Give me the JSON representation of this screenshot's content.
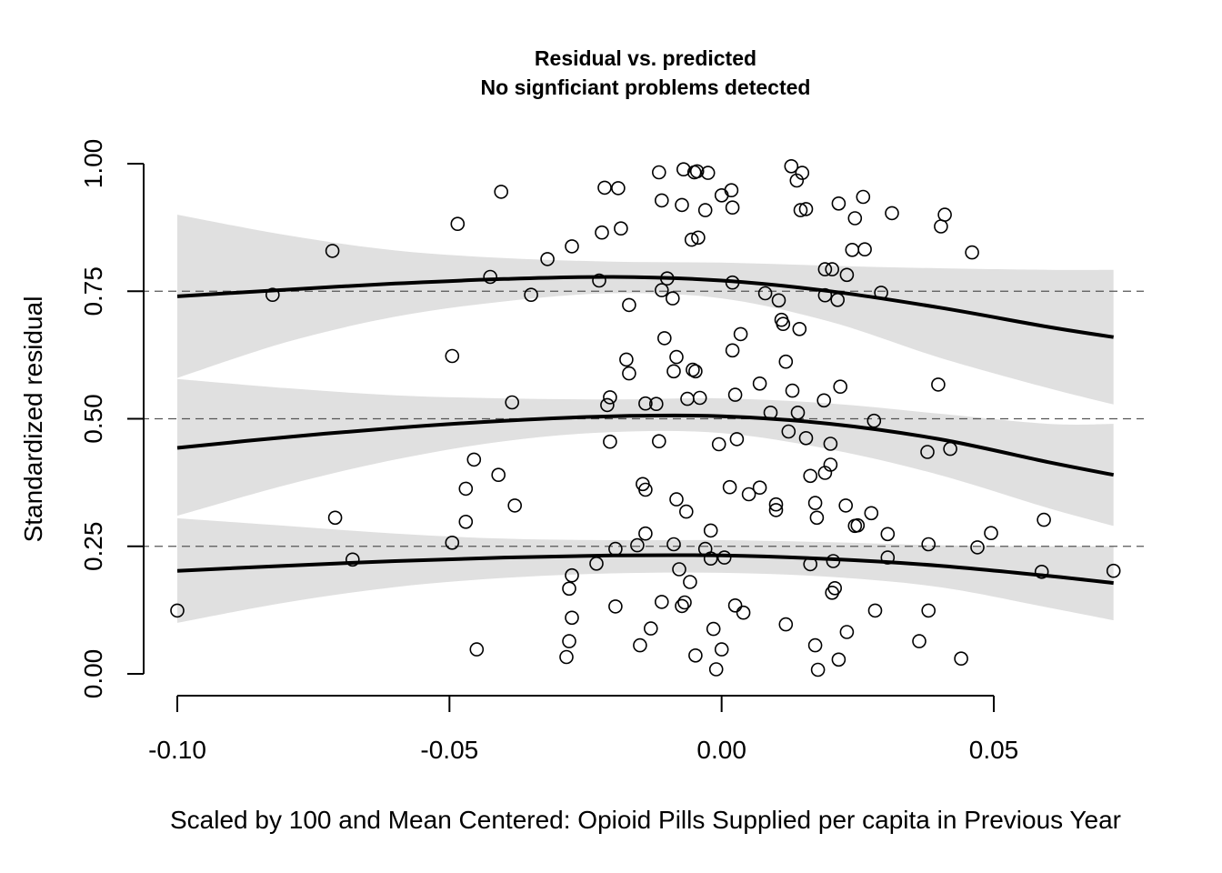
{
  "chart_data": {
    "type": "scatter",
    "title": "Residual vs. predicted",
    "subtitle": "No signficiant problems detected",
    "xlabel": "Scaled by 100 and Mean Centered: Opioid Pills Supplied per capita in Previous Year",
    "ylabel": "Standardized residual",
    "xlim": [
      -0.1,
      0.072
    ],
    "ylim": [
      0,
      1
    ],
    "x_ticks": [
      -0.1,
      -0.05,
      0.0,
      0.05
    ],
    "x_tick_labels": [
      "-0.10",
      "-0.05",
      "0.00",
      "0.05"
    ],
    "y_ticks": [
      0,
      0.25,
      0.5,
      0.75,
      1
    ],
    "y_tick_labels": [
      "0.00",
      "0.25",
      "0.50",
      "0.75",
      "1.00"
    ],
    "grid": false,
    "reference_lines": [
      0.25,
      0.5,
      0.75
    ],
    "quantile_curves": [
      {
        "quantile": 0.25,
        "x": [
          -0.1,
          -0.08,
          -0.06,
          -0.04,
          -0.02,
          0.0,
          0.02,
          0.04,
          0.06,
          0.072
        ],
        "fit": [
          0.202,
          0.212,
          0.221,
          0.228,
          0.232,
          0.232,
          0.225,
          0.212,
          0.192,
          0.178
        ],
        "lower": [
          0.1,
          0.14,
          0.17,
          0.188,
          0.197,
          0.198,
          0.19,
          0.17,
          0.13,
          0.105
        ],
        "upper": [
          0.305,
          0.29,
          0.275,
          0.265,
          0.262,
          0.262,
          0.258,
          0.252,
          0.25,
          0.25
        ]
      },
      {
        "quantile": 0.5,
        "x": [
          -0.1,
          -0.08,
          -0.06,
          -0.04,
          -0.02,
          0.0,
          0.02,
          0.04,
          0.06,
          0.072
        ],
        "fit": [
          0.443,
          0.464,
          0.482,
          0.496,
          0.505,
          0.505,
          0.49,
          0.46,
          0.415,
          0.39
        ],
        "lower": [
          0.31,
          0.37,
          0.42,
          0.456,
          0.474,
          0.472,
          0.44,
          0.39,
          0.325,
          0.29
        ],
        "upper": [
          0.578,
          0.56,
          0.546,
          0.54,
          0.538,
          0.54,
          0.53,
          0.51,
          0.49,
          0.49
        ]
      },
      {
        "quantile": 0.75,
        "x": [
          -0.1,
          -0.08,
          -0.06,
          -0.04,
          -0.02,
          0.0,
          0.02,
          0.04,
          0.06,
          0.072
        ],
        "fit": [
          0.74,
          0.753,
          0.765,
          0.774,
          0.778,
          0.771,
          0.75,
          0.718,
          0.68,
          0.66
        ],
        "lower": [
          0.58,
          0.65,
          0.7,
          0.73,
          0.746,
          0.736,
          0.69,
          0.62,
          0.56,
          0.528
        ],
        "upper": [
          0.9,
          0.86,
          0.83,
          0.815,
          0.808,
          0.806,
          0.8,
          0.795,
          0.792,
          0.792
        ]
      }
    ],
    "points": [
      [
        -0.1,
        0.124
      ],
      [
        -0.0825,
        0.743
      ],
      [
        -0.0715,
        0.829
      ],
      [
        -0.071,
        0.306
      ],
      [
        -0.0678,
        0.224
      ],
      [
        -0.0495,
        0.623
      ],
      [
        -0.0495,
        0.257
      ],
      [
        -0.0485,
        0.882
      ],
      [
        -0.047,
        0.363
      ],
      [
        -0.047,
        0.298
      ],
      [
        -0.0455,
        0.42
      ],
      [
        -0.045,
        0.048
      ],
      [
        -0.0425,
        0.778
      ],
      [
        -0.041,
        0.39
      ],
      [
        -0.0405,
        0.945
      ],
      [
        -0.0385,
        0.532
      ],
      [
        -0.038,
        0.33
      ],
      [
        -0.035,
        0.743
      ],
      [
        -0.032,
        0.813
      ],
      [
        -0.0285,
        0.033
      ],
      [
        -0.028,
        0.064
      ],
      [
        -0.028,
        0.167
      ],
      [
        -0.0275,
        0.193
      ],
      [
        -0.0275,
        0.11
      ],
      [
        -0.0275,
        0.838
      ],
      [
        -0.023,
        0.216
      ],
      [
        -0.0225,
        0.771
      ],
      [
        -0.022,
        0.865
      ],
      [
        -0.0215,
        0.953
      ],
      [
        -0.021,
        0.527
      ],
      [
        -0.0205,
        0.542
      ],
      [
        -0.0205,
        0.455
      ],
      [
        -0.0195,
        0.245
      ],
      [
        -0.0195,
        0.132
      ],
      [
        -0.019,
        0.952
      ],
      [
        -0.0185,
        0.873
      ],
      [
        -0.0175,
        0.616
      ],
      [
        -0.017,
        0.723
      ],
      [
        -0.017,
        0.589
      ],
      [
        -0.0155,
        0.252
      ],
      [
        -0.015,
        0.056
      ],
      [
        -0.0145,
        0.372
      ],
      [
        -0.014,
        0.361
      ],
      [
        -0.014,
        0.275
      ],
      [
        -0.014,
        0.53
      ],
      [
        -0.013,
        0.089
      ],
      [
        -0.012,
        0.529
      ],
      [
        -0.0115,
        0.983
      ],
      [
        -0.0115,
        0.456
      ],
      [
        -0.011,
        0.928
      ],
      [
        -0.011,
        0.752
      ],
      [
        -0.011,
        0.141
      ],
      [
        -0.0105,
        0.658
      ],
      [
        -0.01,
        0.775
      ],
      [
        -0.009,
        0.736
      ],
      [
        -0.0088,
        0.593
      ],
      [
        -0.0088,
        0.254
      ],
      [
        -0.0083,
        0.621
      ],
      [
        -0.0083,
        0.342
      ],
      [
        -0.0078,
        0.205
      ],
      [
        -0.0073,
        0.919
      ],
      [
        -0.0073,
        0.133
      ],
      [
        -0.007,
        0.989
      ],
      [
        -0.0068,
        0.14
      ],
      [
        -0.0065,
        0.318
      ],
      [
        -0.0063,
        0.539
      ],
      [
        -0.0058,
        0.18
      ],
      [
        -0.0055,
        0.851
      ],
      [
        -0.0053,
        0.596
      ],
      [
        -0.005,
        0.983
      ],
      [
        -0.0048,
        0.036
      ],
      [
        -0.0048,
        0.593
      ],
      [
        -0.0045,
        0.985
      ],
      [
        -0.0043,
        0.855
      ],
      [
        -0.004,
        0.541
      ],
      [
        -0.003,
        0.909
      ],
      [
        -0.003,
        0.245
      ],
      [
        -0.0025,
        0.982
      ],
      [
        -0.002,
        0.281
      ],
      [
        -0.002,
        0.226
      ],
      [
        -0.0015,
        0.088
      ],
      [
        -0.001,
        0.009
      ],
      [
        0.0,
        0.938
      ],
      [
        -0.0005,
        0.45
      ],
      [
        0.0,
        0.048
      ],
      [
        0.0005,
        0.228
      ],
      [
        0.0015,
        0.366
      ],
      [
        0.0018,
        0.948
      ],
      [
        0.002,
        0.767
      ],
      [
        0.002,
        0.634
      ],
      [
        0.002,
        0.914
      ],
      [
        0.0025,
        0.547
      ],
      [
        0.0025,
        0.134
      ],
      [
        0.0028,
        0.46
      ],
      [
        0.0035,
        0.666
      ],
      [
        0.004,
        0.12
      ],
      [
        0.005,
        0.352
      ],
      [
        0.007,
        0.365
      ],
      [
        0.007,
        0.569
      ],
      [
        0.008,
        0.746
      ],
      [
        0.009,
        0.512
      ],
      [
        0.01,
        0.332
      ],
      [
        0.01,
        0.321
      ],
      [
        0.0105,
        0.732
      ],
      [
        0.011,
        0.694
      ],
      [
        0.0113,
        0.686
      ],
      [
        0.0118,
        0.612
      ],
      [
        0.0118,
        0.097
      ],
      [
        0.0123,
        0.475
      ],
      [
        0.0128,
        0.995
      ],
      [
        0.013,
        0.555
      ],
      [
        0.0138,
        0.967
      ],
      [
        0.014,
        0.512
      ],
      [
        0.0143,
        0.676
      ],
      [
        0.0145,
        0.909
      ],
      [
        0.0148,
        0.982
      ],
      [
        0.0155,
        0.911
      ],
      [
        0.0155,
        0.462
      ],
      [
        0.0163,
        0.388
      ],
      [
        0.0163,
        0.215
      ],
      [
        0.0172,
        0.335
      ],
      [
        0.0172,
        0.056
      ],
      [
        0.0175,
        0.306
      ],
      [
        0.0177,
        0.008
      ],
      [
        0.0188,
        0.536
      ],
      [
        0.019,
        0.793
      ],
      [
        0.019,
        0.742
      ],
      [
        0.019,
        0.394
      ],
      [
        0.02,
        0.41
      ],
      [
        0.02,
        0.451
      ],
      [
        0.0203,
        0.793
      ],
      [
        0.0203,
        0.159
      ],
      [
        0.0205,
        0.221
      ],
      [
        0.0208,
        0.168
      ],
      [
        0.0213,
        0.733
      ],
      [
        0.0215,
        0.922
      ],
      [
        0.0215,
        0.028
      ],
      [
        0.0218,
        0.563
      ],
      [
        0.0228,
        0.33
      ],
      [
        0.023,
        0.782
      ],
      [
        0.023,
        0.082
      ],
      [
        0.024,
        0.831
      ],
      [
        0.0245,
        0.893
      ],
      [
        0.0245,
        0.29
      ],
      [
        0.025,
        0.291
      ],
      [
        0.026,
        0.935
      ],
      [
        0.0263,
        0.832
      ],
      [
        0.0275,
        0.315
      ],
      [
        0.028,
        0.496
      ],
      [
        0.0282,
        0.124
      ],
      [
        0.0293,
        0.747
      ],
      [
        0.0305,
        0.274
      ],
      [
        0.0305,
        0.228
      ],
      [
        0.0313,
        0.903
      ],
      [
        0.0363,
        0.064
      ],
      [
        0.0378,
        0.435
      ],
      [
        0.038,
        0.254
      ],
      [
        0.038,
        0.124
      ],
      [
        0.0398,
        0.567
      ],
      [
        0.0403,
        0.877
      ],
      [
        0.041,
        0.9
      ],
      [
        0.042,
        0.441
      ],
      [
        0.044,
        0.03
      ],
      [
        0.046,
        0.826
      ],
      [
        0.047,
        0.248
      ],
      [
        0.0495,
        0.276
      ],
      [
        0.0588,
        0.2
      ],
      [
        0.0592,
        0.302
      ],
      [
        0.072,
        0.202
      ]
    ]
  }
}
